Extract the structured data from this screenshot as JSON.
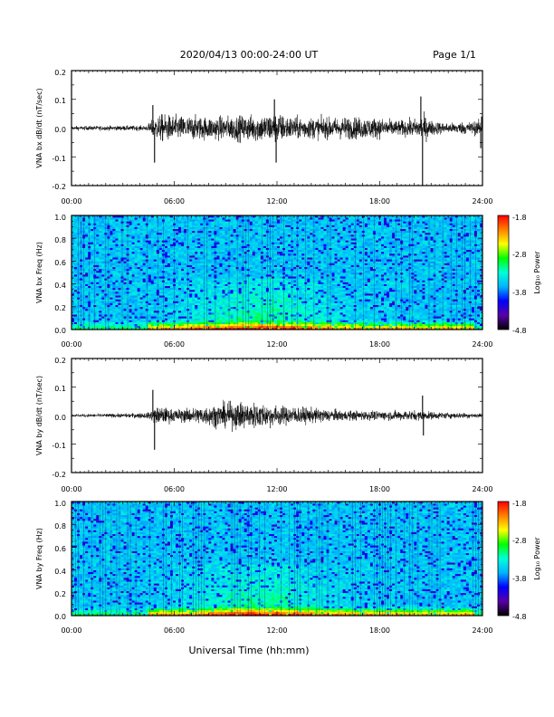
{
  "header": {
    "title": "2020/04/13  00:00-24:00 UT",
    "page": "Page 1/1"
  },
  "x_axis": {
    "label": "Universal Time (hh:mm)",
    "range_hours": [
      0,
      24
    ],
    "ticks": [
      "00:00",
      "06:00",
      "12:00",
      "18:00",
      "24:00"
    ]
  },
  "colorbar": {
    "label": "Log₁₀ Power",
    "ticks": [
      "-1.8",
      "-2.8",
      "-3.8",
      "-4.8"
    ],
    "range": [
      -4.8,
      -1.8
    ],
    "colors": [
      "#000000",
      "#5a00a8",
      "#0000ff",
      "#00b4ff",
      "#00ffd8",
      "#00ff00",
      "#ffff00",
      "#ff8000",
      "#ff0000"
    ]
  },
  "chart_data": [
    {
      "type": "line",
      "ylabel": "VNA bx dB/dt (nT/sec)",
      "ylim": [
        -0.2,
        0.2
      ],
      "yticks": [
        "0.2",
        "0.1",
        "0.0",
        "-0.1",
        "-0.2"
      ],
      "activity_envelope": {
        "x_hours": [
          0,
          4.4,
          4.8,
          5.2,
          6,
          8,
          10,
          11,
          12,
          12.5,
          13,
          15,
          16,
          18,
          19,
          20,
          20.6,
          21,
          22,
          24
        ],
        "half_amplitude": [
          0.008,
          0.01,
          0.04,
          0.055,
          0.05,
          0.045,
          0.05,
          0.055,
          0.06,
          0.05,
          0.045,
          0.04,
          0.045,
          0.04,
          0.03,
          0.035,
          0.05,
          0.03,
          0.02,
          0.03
        ]
      },
      "spikes": [
        {
          "x_hours": 4.75,
          "value": 0.08
        },
        {
          "x_hours": 4.85,
          "value": -0.12
        },
        {
          "x_hours": 11.85,
          "value": 0.1
        },
        {
          "x_hours": 11.95,
          "value": -0.12
        },
        {
          "x_hours": 20.4,
          "value": 0.11
        },
        {
          "x_hours": 20.5,
          "value": -0.2
        },
        {
          "x_hours": 23.9,
          "value": -0.07
        },
        {
          "x_hours": 23.95,
          "value": 0.04
        }
      ]
    },
    {
      "type": "heatmap",
      "ylabel": "VNA bx Freq (Hz)",
      "ylim": [
        0.0,
        1.0
      ],
      "yticks": [
        "1.0",
        "0.8",
        "0.6",
        "0.4",
        "0.2",
        "0.0"
      ],
      "activity_hours": [
        4.5,
        23.5
      ]
    },
    {
      "type": "line",
      "ylabel": "VNA by dB/dt (nT/sec)",
      "ylim": [
        -0.2,
        0.2
      ],
      "yticks": [
        "0.2",
        "0.1",
        "0.0",
        "-0.1",
        "-0.2"
      ],
      "activity_envelope": {
        "x_hours": [
          0,
          3,
          4.5,
          4.8,
          5.2,
          6,
          7,
          8,
          9,
          10,
          11,
          12,
          13,
          14,
          15,
          16,
          18,
          20,
          21,
          22,
          24
        ],
        "half_amplitude": [
          0.006,
          0.008,
          0.012,
          0.03,
          0.035,
          0.025,
          0.03,
          0.04,
          0.05,
          0.055,
          0.05,
          0.04,
          0.035,
          0.03,
          0.025,
          0.02,
          0.018,
          0.02,
          0.015,
          0.012,
          0.01
        ]
      },
      "spikes": [
        {
          "x_hours": 4.75,
          "value": 0.09
        },
        {
          "x_hours": 4.85,
          "value": -0.12
        },
        {
          "x_hours": 20.5,
          "value": 0.07
        },
        {
          "x_hours": 20.55,
          "value": -0.07
        }
      ]
    },
    {
      "type": "heatmap",
      "ylabel": "VNA by Freq (Hz)",
      "ylim": [
        0.0,
        1.0
      ],
      "yticks": [
        "1.0",
        "0.8",
        "0.6",
        "0.4",
        "0.2",
        "0.0"
      ],
      "activity_hours": [
        4.5,
        23.5
      ]
    }
  ]
}
